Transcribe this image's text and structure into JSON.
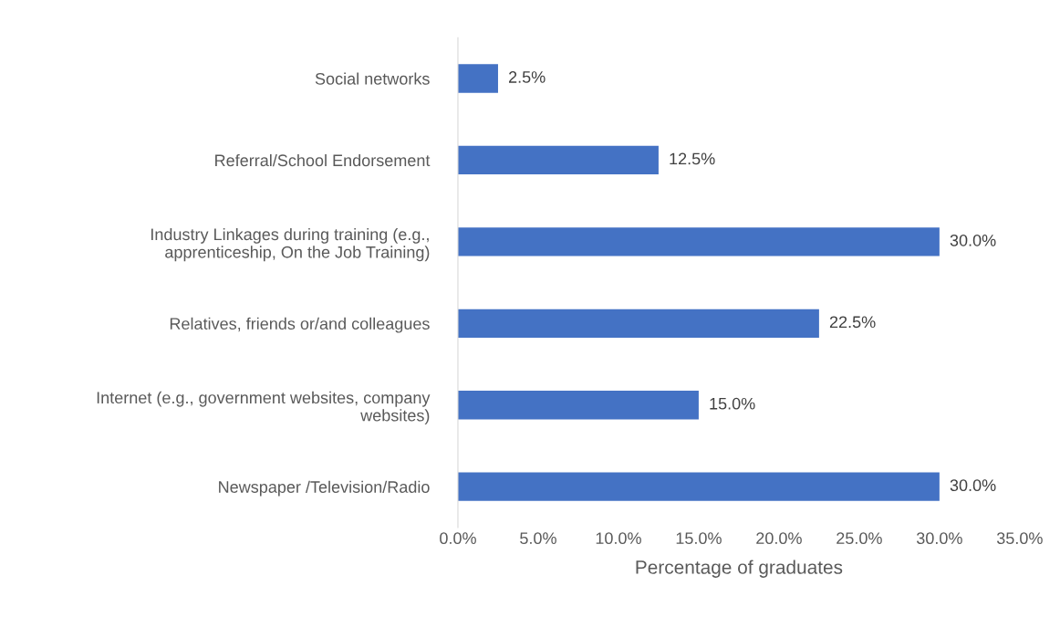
{
  "chart_data": {
    "type": "bar",
    "orientation": "horizontal",
    "xlabel": "Percentage of graduates",
    "categories": [
      "Social networks",
      "Referral/School Endorsement",
      "Industry Linkages during training (e.g.,\napprenticeship, On the Job Training)",
      "Relatives, friends or/and colleagues",
      "Internet (e.g., government websites, company\nwebsites)",
      "Newspaper /Television/Radio"
    ],
    "values": [
      2.5,
      12.5,
      30.0,
      22.5,
      15.0,
      30.0
    ],
    "value_labels": [
      "2.5%",
      "12.5%",
      "30.0%",
      "22.5%",
      "15.0%",
      "30.0%"
    ],
    "color": "#4472c4",
    "xlim": [
      0,
      35
    ],
    "xticks": [
      {
        "value": 0,
        "label": "0.0%"
      },
      {
        "value": 5,
        "label": "5.0%"
      },
      {
        "value": 10,
        "label": "10.0%"
      },
      {
        "value": 15,
        "label": "15.0%"
      },
      {
        "value": 20,
        "label": "20.0%"
      },
      {
        "value": 25,
        "label": "25.0%"
      },
      {
        "value": 30,
        "label": "30.0%"
      },
      {
        "value": 35,
        "label": "35.0%"
      }
    ],
    "grid": false,
    "legend": false
  }
}
